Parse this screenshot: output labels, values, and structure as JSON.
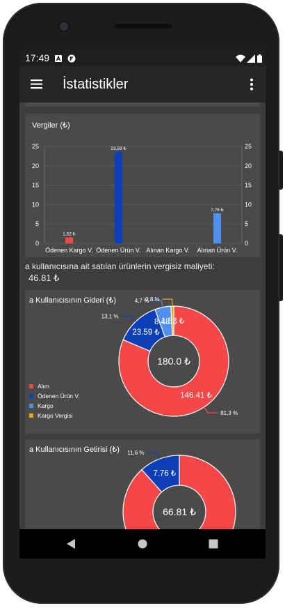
{
  "status_bar": {
    "time": "17:49"
  },
  "app_bar": {
    "title": "İstatistikler"
  },
  "tax_chart": {
    "title": "Vergiler (₺)",
    "chart_data": {
      "type": "bar",
      "categories": [
        "Ödenen Kargo V.",
        "Ödenen Ürün V.",
        "Alınan Kargo V.",
        "Alınan Ürün V."
      ],
      "values": [
        1.52,
        23.59,
        0,
        7.76
      ],
      "value_labels": [
        "1,52 ₺",
        "23,59 ₺",
        "",
        "7,76 ₺"
      ],
      "colors": [
        "#f44848",
        "#0d3fb8",
        "#f5a21b",
        "#4f8ff2"
      ],
      "ylim": [
        0,
        25
      ],
      "yticks": [
        0,
        5,
        10,
        15,
        20,
        25
      ],
      "grid": true
    }
  },
  "info": {
    "label": "a kullanıcısına ait satılan ürünlerin vergisiz maliyeti:",
    "value": "46.81 ₺"
  },
  "expense_chart": {
    "title": "a Kullanıcısının Gideri (₺)",
    "chart_data": {
      "type": "pie",
      "center_text": "180.0 ₺",
      "legend_position": "left",
      "slices": [
        {
          "label": "Alım",
          "value": 146.41,
          "value_label": "146.41 ₺",
          "percent_label": "81,3 %",
          "color": "#f44848"
        },
        {
          "label": "Ödenen Ürün V.",
          "value": 23.59,
          "value_label": "23.59 ₺",
          "percent_label": "13,1 %",
          "color": "#0d3fb8"
        },
        {
          "label": "Kargo",
          "value": 8.48,
          "value_label": "8.48 ₺",
          "percent_label": "4,7 %",
          "color": "#4f8ff2"
        },
        {
          "label": "Kargo Vergisi",
          "value": 1.52,
          "value_label": "1.52 ₺",
          "percent_label": "0,8 %",
          "color": "#f5a21b"
        }
      ]
    }
  },
  "income_chart": {
    "title": "a Kullanıcısının Getirisi (₺)",
    "chart_data": {
      "type": "pie",
      "center_text": "66.81 ₺",
      "slices": [
        {
          "value": 59.05,
          "value_label": "59.05 ₺",
          "percent_label": "",
          "color": "#f44848"
        },
        {
          "value": 7.76,
          "value_label": "7.76 ₺",
          "percent_label": "11,6 %",
          "color": "#0d3fb8"
        }
      ]
    }
  }
}
